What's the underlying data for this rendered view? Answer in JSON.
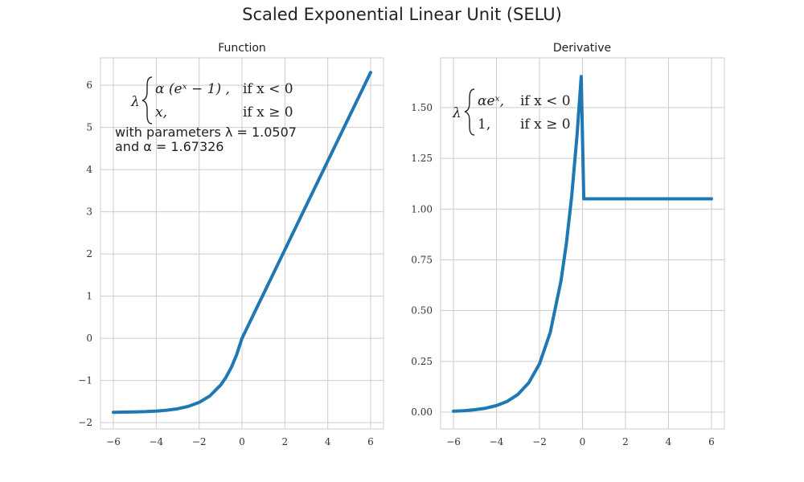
{
  "suptitle": "Scaled Exponential Linear Unit (SELU)",
  "colors": {
    "line": "#1f77b4",
    "grid": "#cccccc",
    "frame": "#cccccc",
    "text": "#222222"
  },
  "params": {
    "lambda": 1.0507,
    "alpha": 1.67326
  },
  "chart_data": [
    {
      "type": "line",
      "title": "Function",
      "xlabel": "",
      "ylabel": "",
      "xlim": [
        -6.6,
        6.6
      ],
      "ylim": [
        -2.15,
        6.65
      ],
      "xticks": [
        -6,
        -4,
        -2,
        0,
        2,
        4,
        6
      ],
      "xtick_labels": [
        "−6",
        "−4",
        "−2",
        "0",
        "2",
        "4",
        "6"
      ],
      "yticks": [
        -2,
        -1,
        0,
        1,
        2,
        3,
        4,
        5,
        6
      ],
      "ytick_labels": [
        "−2",
        "−1",
        "0",
        "1",
        "2",
        "3",
        "4",
        "5",
        "6"
      ],
      "grid": true,
      "series": [
        {
          "x": [
            -6,
            -5.5,
            -5,
            -4.5,
            -4,
            -3.5,
            -3,
            -2.5,
            -2,
            -1.5,
            -1,
            -0.75,
            -0.5,
            -0.25,
            0,
            0.5,
            1,
            2,
            3,
            4,
            5,
            6
          ],
          "y": [
            -1.754,
            -1.751,
            -1.746,
            -1.739,
            -1.726,
            -1.705,
            -1.671,
            -1.614,
            -1.52,
            -1.367,
            -1.111,
            -0.928,
            -0.692,
            -0.389,
            0,
            0.525,
            1.051,
            2.101,
            3.152,
            4.203,
            5.254,
            6.304
          ]
        }
      ],
      "annotation": {
        "lambda_symbol": "λ",
        "case1_expr": "α (eˣ − 1) ,",
        "case1_cond": "if x < 0",
        "case2_expr": "x,",
        "case2_cond": "if x ≥ 0",
        "line3": "with parameters λ = 1.0507",
        "line4": "and α = 1.67326"
      }
    },
    {
      "type": "line",
      "title": "Derivative",
      "xlabel": "",
      "ylabel": "",
      "xlim": [
        -6.6,
        6.6
      ],
      "ylim": [
        -0.083,
        1.745
      ],
      "xticks": [
        -6,
        -4,
        -2,
        0,
        2,
        4,
        6
      ],
      "xtick_labels": [
        "−6",
        "−4",
        "−2",
        "0",
        "2",
        "4",
        "6"
      ],
      "yticks": [
        0,
        0.25,
        0.5,
        0.75,
        1.0,
        1.25,
        1.5
      ],
      "ytick_labels": [
        "0.00",
        "0.25",
        "0.50",
        "0.75",
        "1.00",
        "1.25",
        "1.50"
      ],
      "grid": true,
      "series": [
        {
          "x": [
            -6,
            -5.5,
            -5,
            -4.5,
            -4,
            -3.5,
            -3,
            -2.5,
            -2,
            -1.5,
            -1,
            -0.75,
            -0.5,
            -0.25,
            -0.06,
            0.06,
            1,
            2,
            3,
            4,
            5,
            6
          ],
          "y": [
            0.0044,
            0.0072,
            0.0118,
            0.0195,
            0.0322,
            0.0531,
            0.0875,
            0.1443,
            0.2379,
            0.3922,
            0.6468,
            0.8305,
            1.0663,
            1.3691,
            1.653,
            1.0507,
            1.0507,
            1.0507,
            1.0507,
            1.0507,
            1.0507,
            1.0507
          ]
        }
      ],
      "annotation": {
        "lambda_symbol": "λ",
        "case1_expr": "αeˣ,",
        "case1_cond": "if x < 0",
        "case2_expr": "1,",
        "case2_cond": "if x ≥ 0"
      }
    }
  ]
}
